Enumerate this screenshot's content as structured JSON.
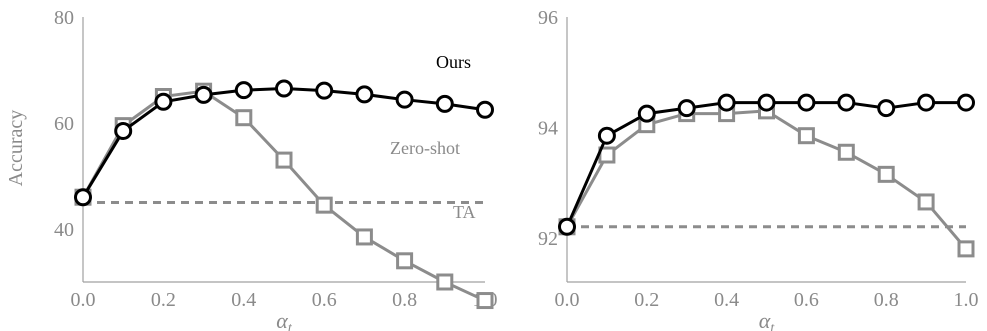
{
  "chart_data": [
    {
      "type": "line",
      "ylabel": "Accuracy",
      "xlabel": "α",
      "xlabel_sub": "t",
      "xlim": [
        0.0,
        1.0
      ],
      "ylim": [
        30,
        80
      ],
      "x_ticks": [
        "0.0",
        "0.2",
        "0.4",
        "0.6",
        "0.8",
        "1.0"
      ],
      "y_ticks": [
        "40",
        "60",
        "80"
      ],
      "grid": false,
      "series": [
        {
          "name": "Ours",
          "marker": "circle",
          "color": "#000000",
          "x": [
            0.0,
            0.1,
            0.2,
            0.3,
            0.4,
            0.5,
            0.6,
            0.7,
            0.8,
            0.9,
            1.0
          ],
          "values": [
            46,
            58.5,
            64,
            65.3,
            66.2,
            66.5,
            66.1,
            65.4,
            64.4,
            63.6,
            62.5
          ]
        },
        {
          "name": "TA",
          "marker": "square",
          "color": "#8c8c8c",
          "x": [
            0.0,
            0.1,
            0.2,
            0.3,
            0.4,
            0.5,
            0.6,
            0.7,
            0.8,
            0.9,
            1.0
          ],
          "values": [
            46,
            59.5,
            65,
            66,
            61,
            53,
            44.5,
            38.5,
            34,
            30,
            26.5
          ]
        }
      ],
      "reference_line": {
        "name": "Zero-shot",
        "value": 45,
        "color": "#8c8c8c",
        "style": "dashed"
      }
    },
    {
      "type": "line",
      "ylabel": "",
      "xlabel": "α",
      "xlabel_sub": "t",
      "xlim": [
        0.0,
        1.0
      ],
      "ylim": [
        91.2,
        96
      ],
      "x_ticks": [
        "0.0",
        "0.2",
        "0.4",
        "0.6",
        "0.8",
        "1.0"
      ],
      "y_ticks": [
        "92",
        "94",
        "96"
      ],
      "grid": false,
      "series": [
        {
          "name": "",
          "marker": "circle",
          "color": "#000000",
          "x": [
            0.0,
            0.1,
            0.2,
            0.3,
            0.4,
            0.5,
            0.6,
            0.7,
            0.8,
            0.9,
            1.0
          ],
          "values": [
            92.2,
            93.85,
            94.25,
            94.35,
            94.45,
            94.45,
            94.45,
            94.45,
            94.35,
            94.45,
            94.45
          ]
        },
        {
          "name": "",
          "marker": "square",
          "color": "#8c8c8c",
          "x": [
            0.0,
            0.1,
            0.2,
            0.3,
            0.4,
            0.5,
            0.6,
            0.7,
            0.8,
            0.9,
            1.0
          ],
          "values": [
            92.2,
            93.5,
            94.05,
            94.25,
            94.25,
            94.3,
            93.85,
            93.55,
            93.15,
            92.65,
            91.8
          ]
        }
      ],
      "reference_line": {
        "name": "",
        "value": 92.2,
        "color": "#8c8c8c",
        "style": "dashed"
      }
    }
  ]
}
